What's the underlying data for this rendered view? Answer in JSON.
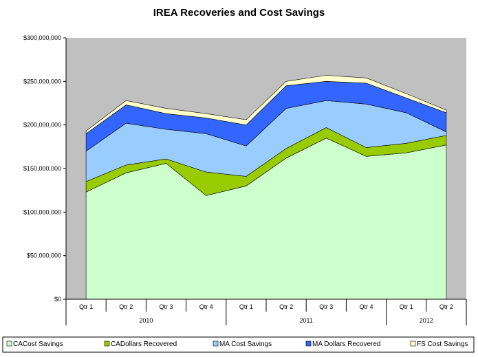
{
  "chart_data": {
    "type": "area",
    "stacked": true,
    "title": "IREA Recoveries and Cost Savings",
    "xlabel": "",
    "ylabel": "",
    "ylim": [
      0,
      300000000
    ],
    "yticks": [
      "$0",
      "$50,000,000",
      "$100,000,000",
      "$150,000,000",
      "$200,000,000",
      "$250,000,000",
      "$300,000,000"
    ],
    "categories": [
      "Qtr 1",
      "Qtr 2",
      "Qtr 3",
      "Qtr 4",
      "Qtr 1",
      "Qtr 2",
      "Qtr 3",
      "Qtr 4",
      "Qtr 1",
      "Qtr 2"
    ],
    "groups": [
      {
        "label": "2010",
        "span": 4
      },
      {
        "label": "2011",
        "span": 4
      },
      {
        "label": "2012",
        "span": 2
      }
    ],
    "grid": false,
    "legend_position": "bottom",
    "series": [
      {
        "name": "CACost Savings",
        "color": "#ccffcc",
        "values": [
          123000000,
          145000000,
          156000000,
          119000000,
          130000000,
          162000000,
          185000000,
          164000000,
          168000000,
          177000000
        ]
      },
      {
        "name": "CADollars Recovered",
        "color": "#99cc00",
        "values": [
          12000000,
          9000000,
          5000000,
          27000000,
          11000000,
          11000000,
          12000000,
          10000000,
          11000000,
          11000000
        ]
      },
      {
        "name": "MA Cost Savings",
        "color": "#99ccff",
        "values": [
          35000000,
          48000000,
          34000000,
          44000000,
          35000000,
          46000000,
          31000000,
          50000000,
          35000000,
          4000000
        ]
      },
      {
        "name": "MA Dollars Recovered",
        "color": "#3366ff",
        "values": [
          20000000,
          21000000,
          18000000,
          18000000,
          24000000,
          26000000,
          22000000,
          24000000,
          17000000,
          22000000
        ]
      },
      {
        "name": "FS Cost Savings",
        "color": "#ffffcc",
        "values": [
          3000000,
          5000000,
          6000000,
          5000000,
          6000000,
          5000000,
          7000000,
          6000000,
          5000000,
          3000000
        ]
      }
    ],
    "colors": {
      "plot_background": "#c0c0c0",
      "outline": "#000000"
    }
  }
}
